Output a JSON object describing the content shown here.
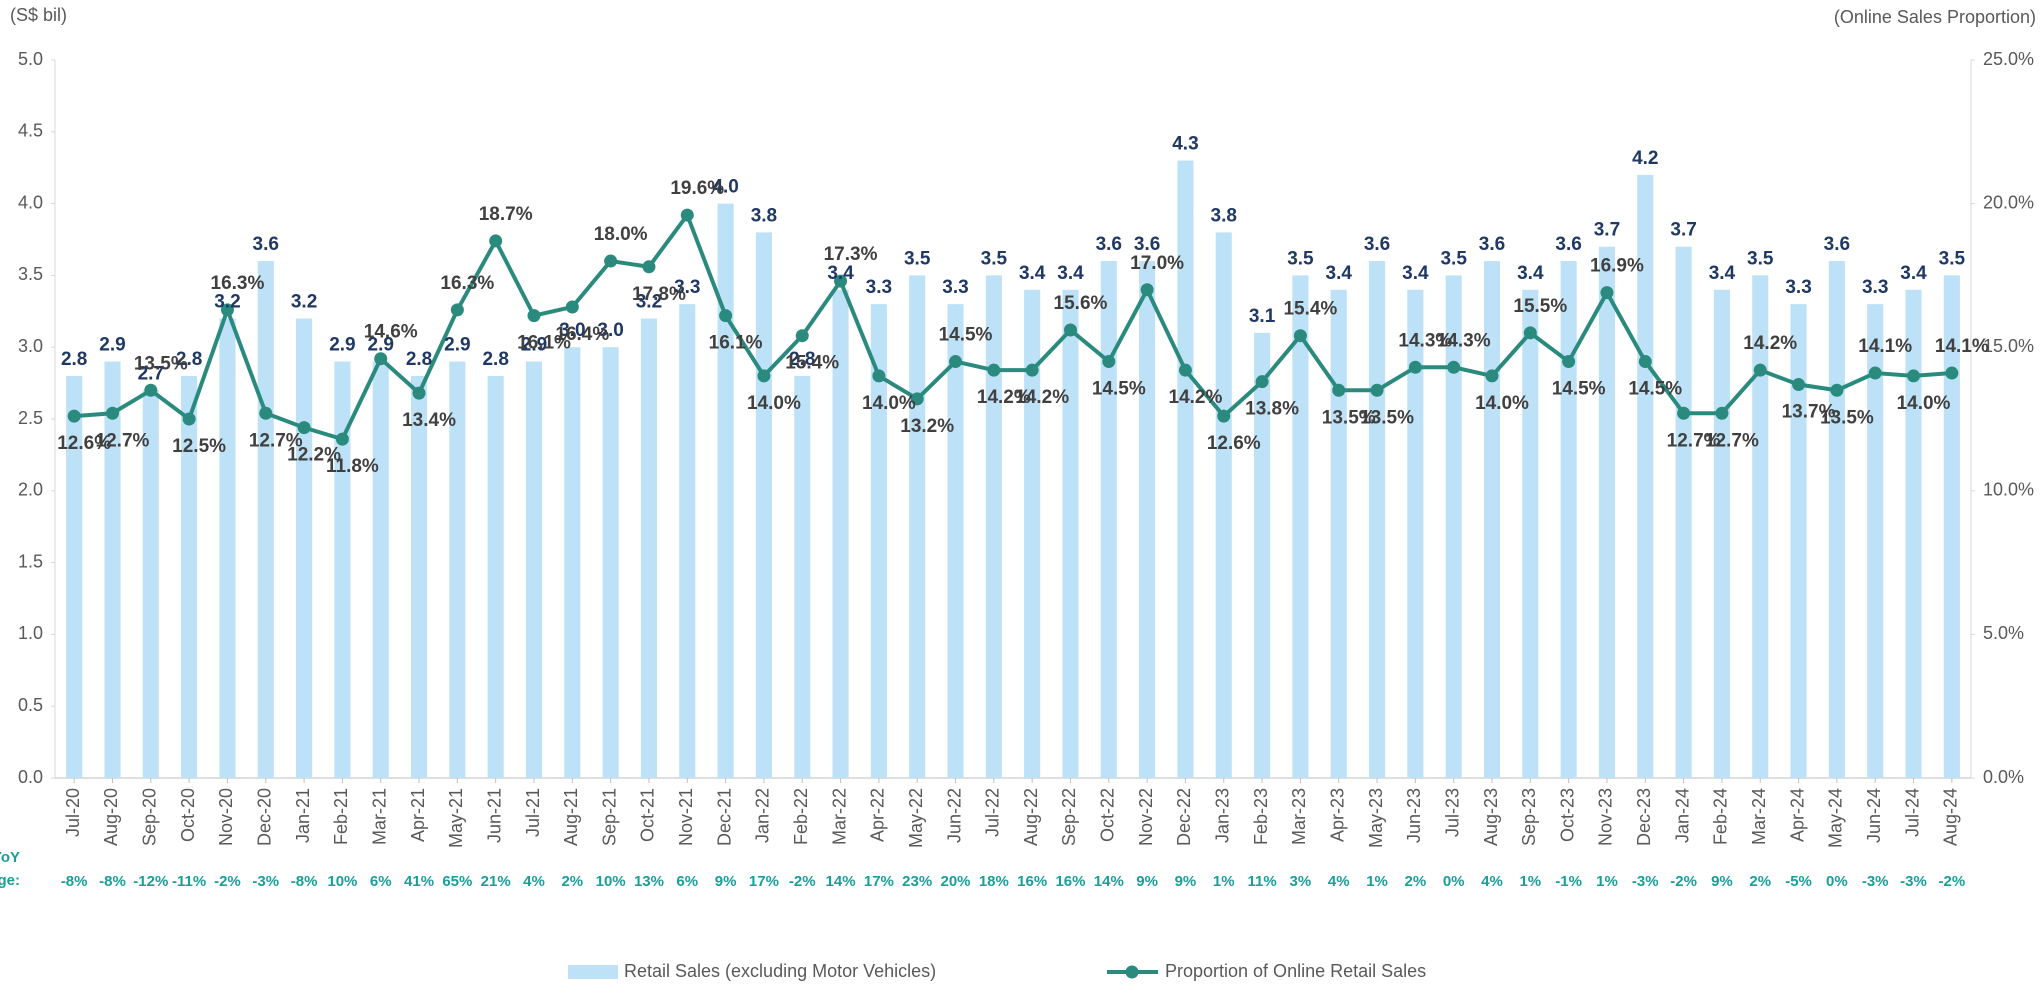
{
  "chart_data": {
    "type": "bar",
    "y_label": "(S$ bil)",
    "y2_label": "(Online Sales Proportion)",
    "categories": [
      "Jul-20",
      "Aug-20",
      "Sep-20",
      "Oct-20",
      "Nov-20",
      "Dec-20",
      "Jan-21",
      "Feb-21",
      "Mar-21",
      "Apr-21",
      "May-21",
      "Jun-21",
      "Jul-21",
      "Aug-21",
      "Sep-21",
      "Oct-21",
      "Nov-21",
      "Dec-21",
      "Jan-22",
      "Feb-22",
      "Mar-22",
      "Apr-22",
      "May-22",
      "Jun-22",
      "Jul-22",
      "Aug-22",
      "Sep-22",
      "Oct-22",
      "Nov-22",
      "Dec-22",
      "Jan-23",
      "Feb-23",
      "Mar-23",
      "Apr-23",
      "May-23",
      "Jun-23",
      "Jul-23",
      "Aug-23",
      "Sep-23",
      "Oct-23",
      "Nov-23",
      "Dec-23",
      "Jan-24",
      "Feb-24",
      "Mar-24",
      "Apr-24",
      "May-24",
      "Jun-24",
      "Jul-24",
      "Aug-24"
    ],
    "series": [
      {
        "name": "Retail Sales (excluding Motor Vehicles)",
        "type": "bar",
        "color": "#bde2f8",
        "values": [
          2.8,
          2.9,
          2.7,
          2.8,
          3.2,
          3.6,
          3.2,
          2.9,
          2.9,
          2.8,
          2.9,
          2.8,
          2.9,
          3.0,
          3.0,
          3.2,
          3.3,
          4.0,
          3.8,
          2.8,
          3.4,
          3.3,
          3.5,
          3.3,
          3.5,
          3.4,
          3.4,
          3.6,
          3.6,
          4.3,
          3.8,
          3.1,
          3.5,
          3.4,
          3.6,
          3.4,
          3.5,
          3.6,
          3.4,
          3.6,
          3.7,
          4.2,
          3.7,
          3.4,
          3.5,
          3.3,
          3.6,
          3.3,
          3.4,
          3.5
        ],
        "value_labels": [
          "2.8",
          "2.9",
          "2.7",
          "2.8",
          "3.2",
          "3.6",
          "3.2",
          "2.9",
          "2.9",
          "2.8",
          "2.9",
          "2.8",
          "2.9",
          "3.0",
          "3.0",
          "3.2",
          "3.3",
          "4.0",
          "3.8",
          "2.8",
          "3.4",
          "3.3",
          "3.5",
          "3.3",
          "3.5",
          "3.4",
          "3.4",
          "3.6",
          "3.6",
          "4.3",
          "3.8",
          "3.1",
          "3.5",
          "3.4",
          "3.6",
          "3.4",
          "3.5",
          "3.6",
          "3.4",
          "3.6",
          "3.7",
          "4.2",
          "3.7",
          "3.4",
          "3.5",
          "3.3",
          "3.6",
          "3.3",
          "3.4",
          "3.5"
        ]
      },
      {
        "name": "Proportion of Online Retail Sales",
        "type": "line",
        "axis": "y2",
        "color": "#2b8a7e",
        "values": [
          12.6,
          12.7,
          13.5,
          12.5,
          16.3,
          12.7,
          12.2,
          11.8,
          14.6,
          13.4,
          16.3,
          18.7,
          16.1,
          16.4,
          18.0,
          17.8,
          19.6,
          16.1,
          14.0,
          15.4,
          17.3,
          14.0,
          13.2,
          14.5,
          14.2,
          14.2,
          15.6,
          14.5,
          17.0,
          14.2,
          12.6,
          13.8,
          15.4,
          13.5,
          13.5,
          14.3,
          14.3,
          14.0,
          15.5,
          14.5,
          16.9,
          14.5,
          12.7,
          12.7,
          14.2,
          13.7,
          13.5,
          14.1,
          14.0,
          14.1
        ],
        "value_labels": [
          "12.6%",
          "12.7%",
          "13.5%",
          "12.5%",
          "16.3%",
          "12.7%",
          "12.2%",
          "11.8%",
          "14.6%",
          "13.4%",
          "16.3%",
          "18.7%",
          "16.1%",
          "16.4%",
          "18.0%",
          "17.8%",
          "19.6%",
          "16.1%",
          "14.0%",
          "15.4%",
          "17.3%",
          "14.0%",
          "13.2%",
          "14.5%",
          "14.2%",
          "14.2%",
          "15.6%",
          "14.5%",
          "17.0%",
          "14.2%",
          "12.6%",
          "13.8%",
          "15.4%",
          "13.5%",
          "13.5%",
          "14.3%",
          "14.3%",
          "14.0%",
          "15.5%",
          "14.5%",
          "16.9%",
          "14.5%",
          "12.7%",
          "12.7%",
          "14.2%",
          "13.7%",
          "13.5%",
          "14.1%",
          "14.0%",
          "14.1%"
        ]
      }
    ],
    "ylim": [
      0,
      5
    ],
    "yticks": [
      {
        "value": 0,
        "label": "0.0"
      },
      {
        "value": 0.5,
        "label": "0.5"
      },
      {
        "value": 1,
        "label": "1.0"
      },
      {
        "value": 1.5,
        "label": "1.5"
      },
      {
        "value": 2,
        "label": "2.0"
      },
      {
        "value": 2.5,
        "label": "2.5"
      },
      {
        "value": 3,
        "label": "3.0"
      },
      {
        "value": 3.5,
        "label": "3.5"
      },
      {
        "value": 4,
        "label": "4.0"
      },
      {
        "value": 4.5,
        "label": "4.5"
      },
      {
        "value": 5,
        "label": "5.0"
      }
    ],
    "y2lim": [
      0,
      25
    ],
    "y2ticks": [
      {
        "value": 0,
        "label": "0.0%"
      },
      {
        "value": 5,
        "label": "5.0%"
      },
      {
        "value": 10,
        "label": "10.0%"
      },
      {
        "value": 15,
        "label": "15.0%"
      },
      {
        "value": 20,
        "label": "20.0%"
      },
      {
        "value": 25,
        "label": "25.0%"
      }
    ],
    "grid": false,
    "legend": "bottom",
    "yoy_change": {
      "label": [
        "YoY",
        "Change:"
      ],
      "labels": [
        "-8%",
        "-8%",
        "-12%",
        "-11%",
        "-2%",
        "-3%",
        "-8%",
        "10%",
        "6%",
        "41%",
        "65%",
        "21%",
        "4%",
        "2%",
        "10%",
        "13%",
        "6%",
        "9%",
        "17%",
        "-2%",
        "14%",
        "17%",
        "23%",
        "20%",
        "18%",
        "16%",
        "16%",
        "14%",
        "9%",
        "9%",
        "1%",
        "11%",
        "3%",
        "4%",
        "1%",
        "2%",
        "0%",
        "4%",
        "1%",
        "-1%",
        "1%",
        "-3%",
        "-2%",
        "9%",
        "2%",
        "-5%",
        "0%",
        "-3%",
        "-3%",
        "-2%"
      ]
    }
  }
}
